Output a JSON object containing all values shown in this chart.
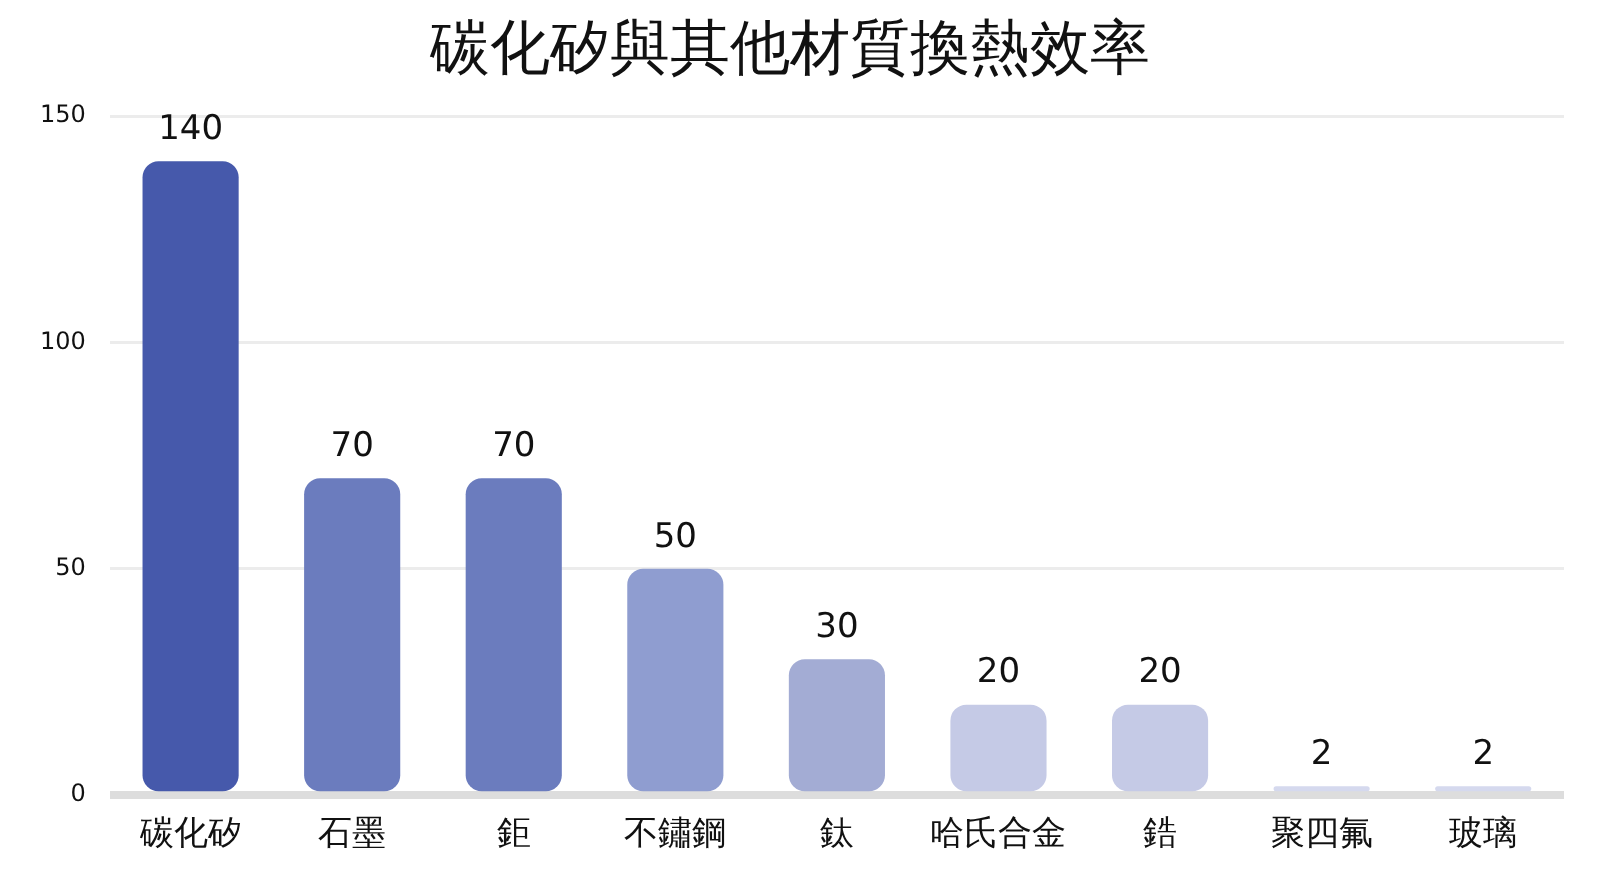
{
  "chart_data": {
    "type": "bar",
    "title": "碳化矽與其他材質換熱效率",
    "categories": [
      "碳化矽",
      "石墨",
      "鉅",
      "不鏽鋼",
      "鈦",
      "哈氏合金",
      "鋯",
      "聚四氟",
      "玻璃"
    ],
    "values": [
      140,
      70,
      70,
      50,
      30,
      20,
      20,
      2,
      2
    ],
    "colors": [
      "#4659ab",
      "#6b7cbe",
      "#6b7cbe",
      "#8f9dd0",
      "#a3acd4",
      "#c5cae6",
      "#c5cae6",
      "#d5d9ee",
      "#d5d9ee"
    ],
    "ylim": [
      0,
      150
    ],
    "yticks": [
      0,
      50,
      100,
      150
    ],
    "grid": "y",
    "data_labels": true,
    "legend": false
  }
}
